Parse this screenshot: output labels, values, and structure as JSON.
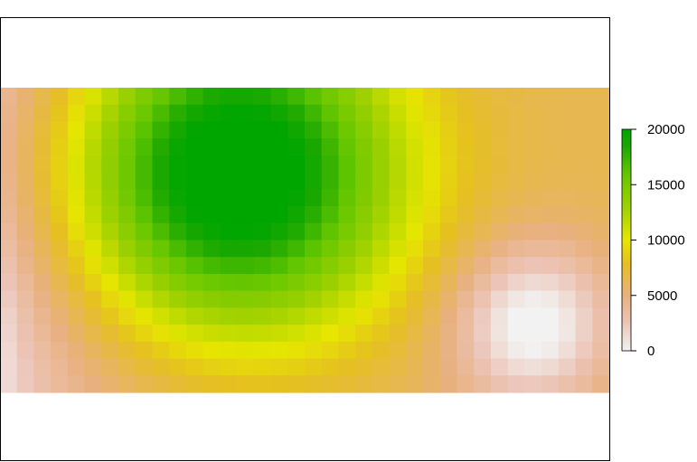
{
  "chart_data": {
    "type": "heatmap",
    "title": "",
    "xlabel": "",
    "ylabel": "",
    "grid": false,
    "axes_visible": false,
    "grid_size": {
      "cols": 36,
      "rows": 18
    },
    "value_range": [
      0,
      20000
    ],
    "value_description": "smooth raster surface: peak of ~20000 upper-left, minimum of ~0 lower-right, ~2000-4000 along the left edge",
    "legend": {
      "placement": "right",
      "ticks": [
        "20000",
        "15000",
        "10000",
        "5000",
        "0"
      ],
      "tick_values": [
        20000,
        15000,
        10000,
        5000,
        0
      ]
    },
    "colormap": [
      {
        "value": 0,
        "color": "#f2f2f2"
      },
      {
        "value": 2500,
        "color": "#ecc5b8"
      },
      {
        "value": 5000,
        "color": "#e8b07e"
      },
      {
        "value": 8000,
        "color": "#e5c020"
      },
      {
        "value": 10000,
        "color": "#e6e600"
      },
      {
        "value": 13000,
        "color": "#9ed100"
      },
      {
        "value": 16000,
        "color": "#63c600"
      },
      {
        "value": 18500,
        "color": "#1ba800"
      },
      {
        "value": 20000,
        "color": "#00a600"
      }
    ]
  }
}
